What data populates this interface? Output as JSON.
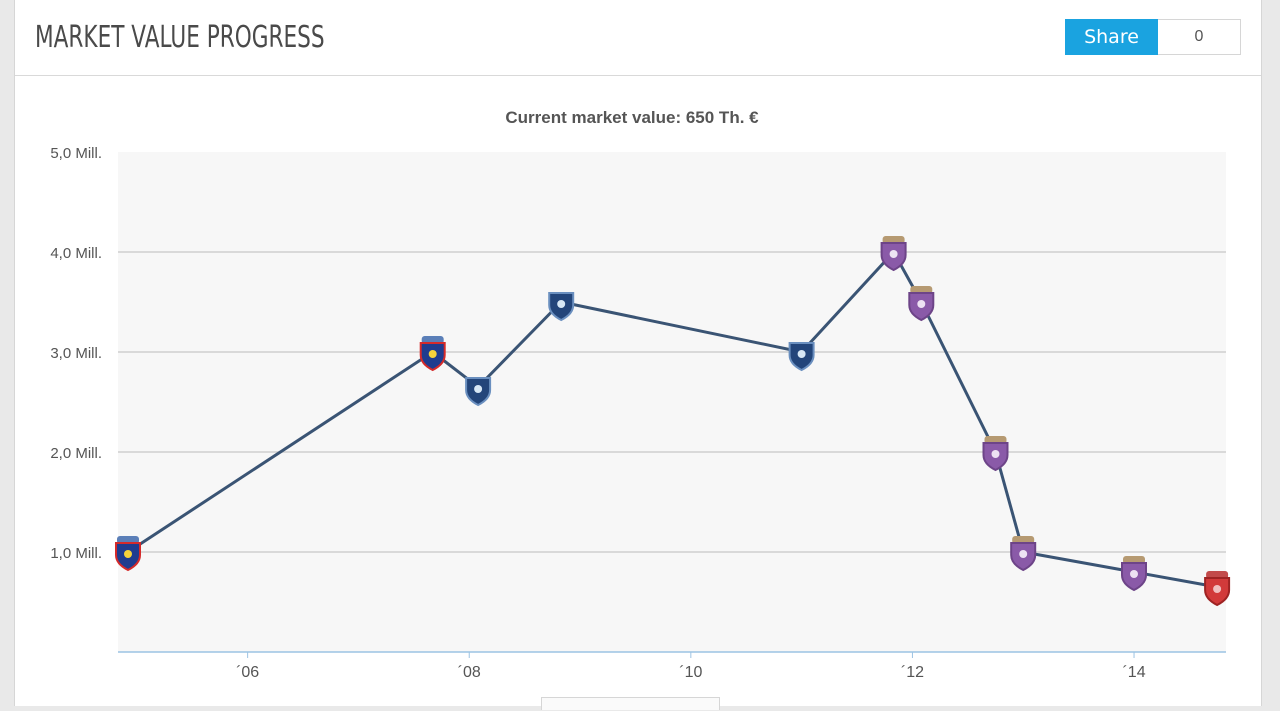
{
  "header": {
    "title": "MARKET VALUE PROGRESS",
    "share_label": "Share",
    "share_count": "0"
  },
  "colors": {
    "line": "#3a5474",
    "plot_bg": "#f7f7f7",
    "grid": "#cfcfcf",
    "axis": "#9cc3e3",
    "share": "#1aa3e0"
  },
  "chart_data": {
    "type": "line",
    "title": "Current market value: 650 Th. €",
    "xlabel": "",
    "ylabel": "",
    "xlim": [
      2004.83,
      2014.83
    ],
    "ylim": [
      0,
      5
    ],
    "y_ticks": [
      {
        "value": 1,
        "label": "1,0 Mill."
      },
      {
        "value": 2,
        "label": "2,0 Mill."
      },
      {
        "value": 3,
        "label": "3,0 Mill."
      },
      {
        "value": 4,
        "label": "4,0 Mill."
      },
      {
        "value": 5,
        "label": "5,0 Mill."
      }
    ],
    "x_ticks": [
      {
        "value": 2006,
        "label": "´06"
      },
      {
        "value": 2008,
        "label": "´08"
      },
      {
        "value": 2010,
        "label": "´10"
      },
      {
        "value": 2012,
        "label": "´12"
      },
      {
        "value": 2014,
        "label": "´14"
      }
    ],
    "grid": true,
    "points": [
      {
        "x": 2004.92,
        "y": 1.0,
        "club": "steaua"
      },
      {
        "x": 2007.67,
        "y": 3.0,
        "club": "steaua"
      },
      {
        "x": 2008.08,
        "y": 2.65,
        "club": "hilal"
      },
      {
        "x": 2008.83,
        "y": 3.5,
        "club": "hilal"
      },
      {
        "x": 2011.0,
        "y": 3.0,
        "club": "hilal"
      },
      {
        "x": 2011.83,
        "y": 4.0,
        "club": "purple"
      },
      {
        "x": 2012.08,
        "y": 3.5,
        "club": "purple"
      },
      {
        "x": 2012.75,
        "y": 2.0,
        "club": "purple"
      },
      {
        "x": 2013.0,
        "y": 1.0,
        "club": "purple"
      },
      {
        "x": 2014.0,
        "y": 0.8,
        "club": "purple"
      },
      {
        "x": 2014.75,
        "y": 0.65,
        "club": "red"
      }
    ]
  }
}
